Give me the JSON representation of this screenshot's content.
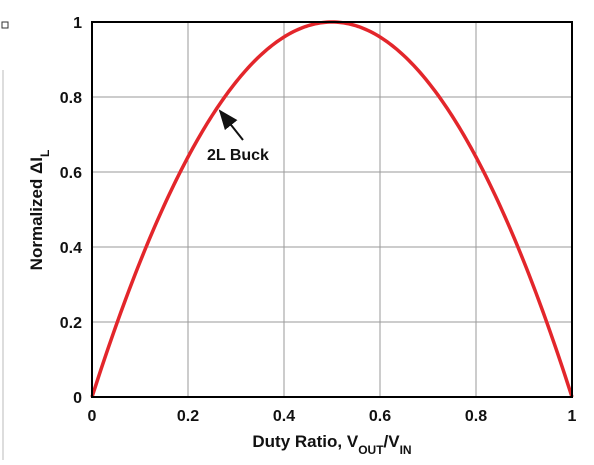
{
  "chart_data": {
    "type": "line",
    "xlabel_main": "Duty Ratio, V",
    "xlabel_sub1": "OUT",
    "xlabel_slash": "/V",
    "xlabel_sub2": "IN",
    "ylabel_main": "Normalized ΔI",
    "ylabel_sub": "L",
    "xlim": [
      0,
      1
    ],
    "ylim": [
      0,
      1
    ],
    "x_ticks": [
      0,
      0.2,
      0.4,
      0.6,
      0.8,
      1
    ],
    "x_tick_labels": [
      "0",
      "0.2",
      "0.4",
      "0.6",
      "0.8",
      "1"
    ],
    "y_ticks": [
      0,
      0.2,
      0.4,
      0.6,
      0.8,
      1
    ],
    "y_tick_labels": [
      "0",
      "0.2",
      "0.4",
      "0.6",
      "0.8",
      "1"
    ],
    "grid": true,
    "series": [
      {
        "name": "2L Buck",
        "color": "#e3262b",
        "x": [
          0,
          0.05,
          0.1,
          0.15,
          0.2,
          0.25,
          0.3,
          0.35,
          0.4,
          0.45,
          0.5,
          0.55,
          0.6,
          0.65,
          0.7,
          0.75,
          0.8,
          0.85,
          0.9,
          0.95,
          1
        ],
        "y": [
          0,
          0.19,
          0.36,
          0.51,
          0.64,
          0.75,
          0.84,
          0.91,
          0.96,
          0.99,
          1.0,
          0.99,
          0.96,
          0.91,
          0.84,
          0.75,
          0.64,
          0.51,
          0.36,
          0.19,
          0
        ]
      }
    ],
    "annotation": {
      "text": "2L Buck",
      "arrow_to": [
        0.265,
        0.78
      ]
    }
  }
}
